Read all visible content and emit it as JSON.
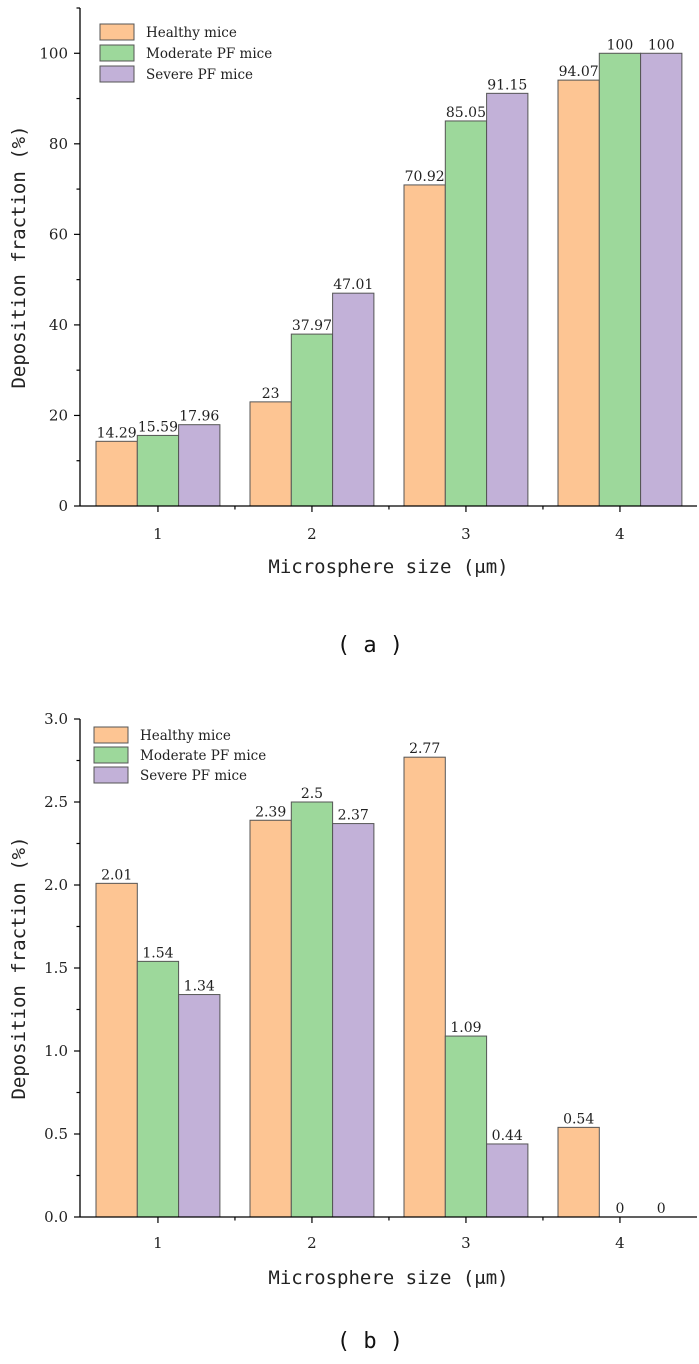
{
  "colors": {
    "healthy": "#fdc593",
    "moderate": "#9dd89b",
    "severe": "#c2b1d8"
  },
  "chart_data": [
    {
      "type": "bar",
      "panel_label": "( a )",
      "title": "",
      "xlabel": "Microsphere size (μm)",
      "ylabel": "Deposition fraction (%)",
      "ylim": [
        0,
        110
      ],
      "yticks": [
        "0",
        "20",
        "40",
        "60",
        "80",
        "100"
      ],
      "categories": [
        "1",
        "2",
        "3",
        "4"
      ],
      "legend_position": "top-left",
      "series": [
        {
          "name": "Healthy mice",
          "values": [
            14.29,
            23,
            70.92,
            94.07
          ],
          "labels": [
            "14.29",
            "23",
            "70.92",
            "94.07"
          ]
        },
        {
          "name": "Moderate PF mice",
          "values": [
            15.59,
            37.97,
            85.05,
            100
          ],
          "labels": [
            "15.59",
            "37.97",
            "85.05",
            "100"
          ]
        },
        {
          "name": "Severe PF mice",
          "values": [
            17.96,
            47.01,
            91.15,
            100
          ],
          "labels": [
            "17.96",
            "47.01",
            "91.15",
            "100"
          ]
        }
      ]
    },
    {
      "type": "bar",
      "panel_label": "( b )",
      "title": "",
      "xlabel": "Microsphere size (μm)",
      "ylabel": "Deposition fraction (%)",
      "ylim": [
        0,
        3.0
      ],
      "yticks": [
        "0.0",
        "0.5",
        "1.0",
        "1.5",
        "2.0",
        "2.5",
        "3.0"
      ],
      "categories": [
        "1",
        "2",
        "3",
        "4"
      ],
      "legend_position": "top-left",
      "series": [
        {
          "name": "Healthy mice",
          "values": [
            2.01,
            2.39,
            2.77,
            0.54
          ],
          "labels": [
            "2.01",
            "2.39",
            "2.77",
            "0.54"
          ]
        },
        {
          "name": "Moderate PF mice",
          "values": [
            1.54,
            2.5,
            1.09,
            0
          ],
          "labels": [
            "1.54",
            "2.5",
            "1.09",
            "0"
          ]
        },
        {
          "name": "Severe PF mice",
          "values": [
            1.34,
            2.37,
            0.44,
            0
          ],
          "labels": [
            "1.34",
            "2.37",
            "0.44",
            "0"
          ]
        }
      ]
    }
  ]
}
